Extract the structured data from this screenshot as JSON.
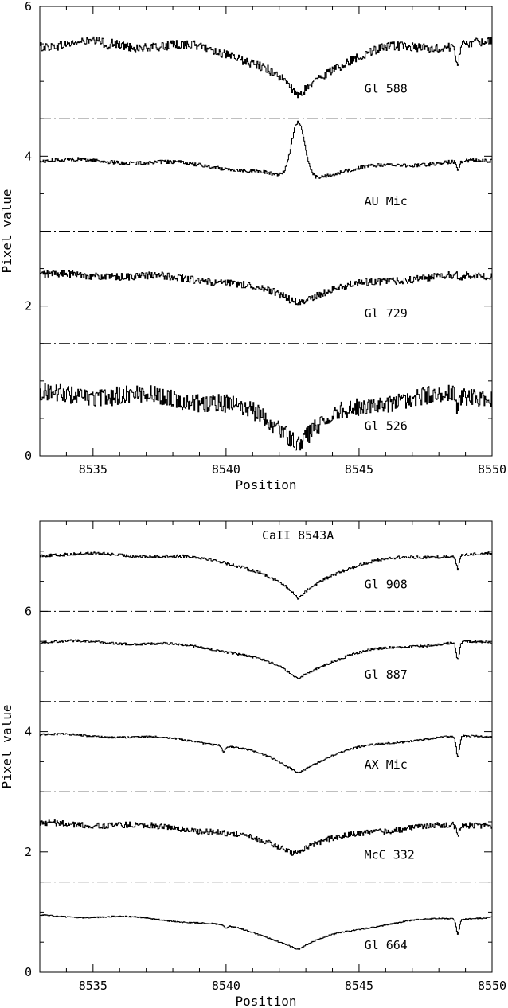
{
  "chart_data": [
    {
      "type": "line",
      "title": "",
      "xlabel": "Position",
      "ylabel": "Pixel value",
      "xlim": [
        8533,
        8550
      ],
      "ylim": [
        0,
        6
      ],
      "xticks": [
        8535,
        8540,
        8545,
        8550
      ],
      "xtick_labels": [
        "8535",
        "8540",
        "8545",
        "8550"
      ],
      "yticks": [
        0,
        2,
        4,
        6
      ],
      "ytick_labels": [
        "0",
        "2",
        "4",
        "6"
      ],
      "separators": [
        1.5,
        3.0,
        4.5
      ],
      "series": [
        {
          "name": "Gl 588",
          "continuum": 5.5,
          "min": 4.75,
          "center": 8542.7,
          "noise": 0.06,
          "shape": "absorption",
          "width": 1.5,
          "lines": [
            [
              8548.7,
              -0.28
            ],
            [
              8535.5,
              -0.05
            ]
          ],
          "label_y": 4.9
        },
        {
          "name": "AU Mic",
          "continuum": 3.95,
          "min": 4.45,
          "center": 8542.7,
          "noise": 0.025,
          "shape": "emission",
          "width": 0.25,
          "trough": 3.65,
          "lines": [
            [
              8548.7,
              -0.12
            ]
          ],
          "label_y": 3.4
        },
        {
          "name": "Gl 729",
          "continuum": 2.42,
          "min": 2.05,
          "center": 8542.7,
          "noise": 0.05,
          "shape": "absorption",
          "width": 2.2,
          "lines": [
            [
              8548.8,
              -0.08
            ]
          ],
          "label_y": 1.9
        },
        {
          "name": "Gl 526",
          "continuum": 0.82,
          "min": 0.18,
          "center": 8542.7,
          "noise": 0.12,
          "shape": "absorption",
          "width": 1.8,
          "lines": [
            [
              8548.7,
              -0.2
            ]
          ],
          "label_y": 0.4
        }
      ]
    },
    {
      "type": "line",
      "title": "CaII 8543A",
      "xlabel": "Position",
      "ylabel": "Pixel value",
      "xlim": [
        8533,
        8550
      ],
      "ylim": [
        0,
        7.5
      ],
      "xticks": [
        8535,
        8540,
        8545,
        8550
      ],
      "xtick_labels": [
        "8535",
        "8540",
        "8545",
        "8550"
      ],
      "yticks": [
        0,
        2,
        4,
        6
      ],
      "ytick_labels": [
        "0",
        "2",
        "4",
        "6"
      ],
      "separators": [
        1.5,
        3.0,
        4.5,
        6.0
      ],
      "series": [
        {
          "name": "Gl 908",
          "continuum": 6.95,
          "min": 6.2,
          "center": 8542.7,
          "noise": 0.025,
          "shape": "absorption",
          "width": 1.6,
          "lines": [
            [
              8548.7,
              -0.22
            ]
          ],
          "label_y": 6.45
        },
        {
          "name": "Gl 887",
          "continuum": 5.5,
          "min": 4.88,
          "center": 8542.7,
          "noise": 0.02,
          "shape": "absorption",
          "width": 2.0,
          "lines": [
            [
              8548.7,
              -0.28
            ]
          ],
          "label_y": 4.95
        },
        {
          "name": "AX Mic",
          "continuum": 3.95,
          "min": 3.32,
          "center": 8542.7,
          "noise": 0.015,
          "shape": "absorption",
          "width": 2.2,
          "lines": [
            [
              8548.7,
              -0.35
            ],
            [
              8539.9,
              -0.1
            ]
          ],
          "label_y": 3.45
        },
        {
          "name": "McC 332",
          "continuum": 2.48,
          "min": 2.0,
          "center": 8542.5,
          "noise": 0.05,
          "shape": "absorption",
          "width": 2.5,
          "lines": [
            [
              8548.7,
              -0.15
            ]
          ],
          "label_y": 1.95
        },
        {
          "name": "Gl 664",
          "continuum": 0.95,
          "min": 0.38,
          "center": 8542.7,
          "noise": 0.01,
          "shape": "absorption",
          "width": 2.5,
          "lines": [
            [
              8548.7,
              -0.25
            ],
            [
              8540.0,
              -0.05
            ]
          ],
          "label_y": 0.45
        }
      ]
    }
  ]
}
